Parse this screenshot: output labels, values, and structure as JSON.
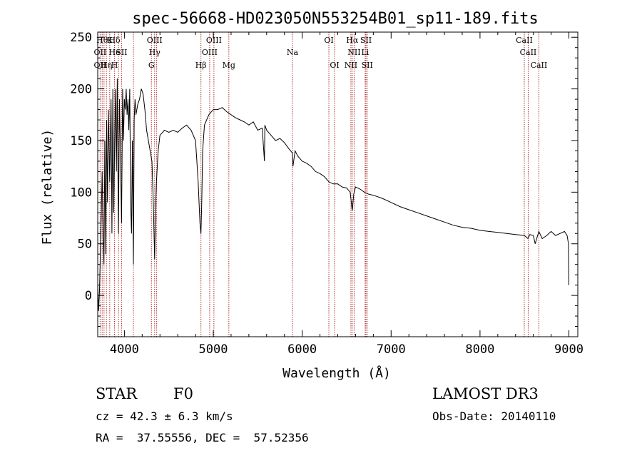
{
  "chart_data": {
    "type": "line",
    "title": "spec-56668-HD023050N553254B01_sp11-189.fits",
    "xlabel": "Wavelength (Å)",
    "ylabel": "Flux (relative)",
    "xlim": [
      3700,
      9100
    ],
    "ylim": [
      -40,
      255
    ],
    "xticks": [
      4000,
      5000,
      6000,
      7000,
      8000,
      9000
    ],
    "xtick_labels": [
      "4000",
      "5000",
      "6000",
      "7000",
      "8000",
      "9000"
    ],
    "yticks": [
      0,
      50,
      100,
      150,
      200,
      250
    ],
    "ytick_labels": [
      "0",
      "50",
      "100",
      "150",
      "200",
      "250"
    ],
    "series": [
      {
        "name": "flux",
        "x": [
          3700,
          3710,
          3720,
          3730,
          3740,
          3750,
          3760,
          3770,
          3780,
          3790,
          3800,
          3810,
          3820,
          3835,
          3850,
          3860,
          3870,
          3880,
          3889,
          3900,
          3910,
          3920,
          3933,
          3945,
          3955,
          3968,
          3980,
          3990,
          4000,
          4010,
          4020,
          4030,
          4040,
          4050,
          4060,
          4070,
          4080,
          4090,
          4101,
          4110,
          4120,
          4130,
          4150,
          4170,
          4190,
          4210,
          4230,
          4250,
          4270,
          4290,
          4310,
          4325,
          4340,
          4350,
          4360,
          4380,
          4400,
          4450,
          4500,
          4550,
          4600,
          4650,
          4700,
          4750,
          4800,
          4830,
          4850,
          4861,
          4870,
          4880,
          4900,
          4950,
          5000,
          5050,
          5100,
          5150,
          5200,
          5250,
          5300,
          5350,
          5400,
          5450,
          5500,
          5550,
          5575,
          5580,
          5600,
          5650,
          5700,
          5750,
          5800,
          5850,
          5890,
          5896,
          5920,
          5950,
          6000,
          6050,
          6100,
          6150,
          6200,
          6250,
          6300,
          6350,
          6400,
          6450,
          6500,
          6540,
          6563,
          6580,
          6600,
          6650,
          6700,
          6750,
          6800,
          6900,
          7000,
          7100,
          7200,
          7300,
          7400,
          7500,
          7600,
          7700,
          7800,
          7900,
          8000,
          8100,
          8200,
          8300,
          8400,
          8500,
          8540,
          8560,
          8600,
          8620,
          8662,
          8700,
          8750,
          8800,
          8850,
          8900,
          8950,
          8980,
          8995,
          9000
        ],
        "y": [
          10,
          -15,
          5,
          40,
          80,
          120,
          60,
          30,
          150,
          40,
          170,
          90,
          180,
          110,
          190,
          60,
          200,
          80,
          140,
          200,
          120,
          210,
          60,
          190,
          140,
          70,
          200,
          150,
          190,
          180,
          200,
          175,
          190,
          160,
          200,
          90,
          60,
          150,
          30,
          170,
          190,
          175,
          185,
          190,
          200,
          195,
          180,
          160,
          150,
          140,
          130,
          90,
          35,
          80,
          110,
          140,
          155,
          160,
          158,
          160,
          158,
          162,
          165,
          160,
          150,
          110,
          70,
          60,
          90,
          140,
          165,
          175,
          180,
          180,
          182,
          178,
          175,
          172,
          170,
          168,
          165,
          168,
          160,
          162,
          130,
          165,
          160,
          155,
          150,
          152,
          148,
          142,
          138,
          125,
          140,
          135,
          130,
          128,
          125,
          120,
          118,
          115,
          110,
          108,
          108,
          105,
          104,
          100,
          82,
          98,
          105,
          103,
          100,
          98,
          97,
          94,
          90,
          86,
          83,
          80,
          77,
          74,
          71,
          68,
          66,
          65,
          63,
          62,
          61,
          60,
          59,
          58,
          55,
          59,
          58,
          50,
          62,
          55,
          58,
          62,
          58,
          60,
          62,
          58,
          50,
          10
        ]
      }
    ],
    "lines_top": [
      {
        "w": 3750,
        "label": "Hθ"
      },
      {
        "w": 3835,
        "label": "K"
      },
      {
        "w": 3889,
        "label": "Hδ"
      },
      {
        "w": 4340,
        "label": "OIII"
      },
      {
        "w": 5007,
        "label": "OIII"
      },
      {
        "w": 6300,
        "label": "OI"
      },
      {
        "w": 6563,
        "label": "Hα"
      },
      {
        "w": 6717,
        "label": "SII"
      },
      {
        "w": 8498,
        "label": "CaII"
      }
    ],
    "lines_mid": [
      {
        "w": 3727,
        "label": "OII"
      },
      {
        "w": 3889,
        "label": "He"
      },
      {
        "w": 3968,
        "label": "SII"
      },
      {
        "w": 4340,
        "label": "Hγ"
      },
      {
        "w": 4959,
        "label": "OIII"
      },
      {
        "w": 5890,
        "label": "Na"
      },
      {
        "w": 6584,
        "label": "NII"
      },
      {
        "w": 6708,
        "label": "Li"
      },
      {
        "w": 8542,
        "label": "CaII"
      }
    ],
    "lines_low": [
      {
        "w": 3727,
        "label": "OII"
      },
      {
        "w": 3798,
        "label": "Hη"
      },
      {
        "w": 3889,
        "label": "H"
      },
      {
        "w": 4304,
        "label": "G"
      },
      {
        "w": 4861,
        "label": "Hβ"
      },
      {
        "w": 5175,
        "label": "Mg"
      },
      {
        "w": 6364,
        "label": "OI"
      },
      {
        "w": 6548,
        "label": "NII"
      },
      {
        "w": 6731,
        "label": "SII"
      },
      {
        "w": 8662,
        "label": "CaII"
      }
    ],
    "marker_wavelengths": [
      3727,
      3750,
      3771,
      3798,
      3835,
      3889,
      3934,
      3968,
      4101,
      4304,
      4340,
      4363,
      4861,
      4959,
      5007,
      5175,
      5890,
      6300,
      6364,
      6548,
      6563,
      6584,
      6708,
      6717,
      6731,
      8498,
      8542,
      8662
    ]
  },
  "info": {
    "class": "STAR",
    "subclass": "F0",
    "survey": "LAMOST DR3",
    "cz": "cz = 42.3 ± 6.3 km/s",
    "obs_date": "Obs-Date: 20140110",
    "radec": "RA =  37.55556, DEC =  57.52356"
  },
  "colors": {
    "marker": "#b03030",
    "spectrum": "#000000",
    "axis": "#000000"
  }
}
